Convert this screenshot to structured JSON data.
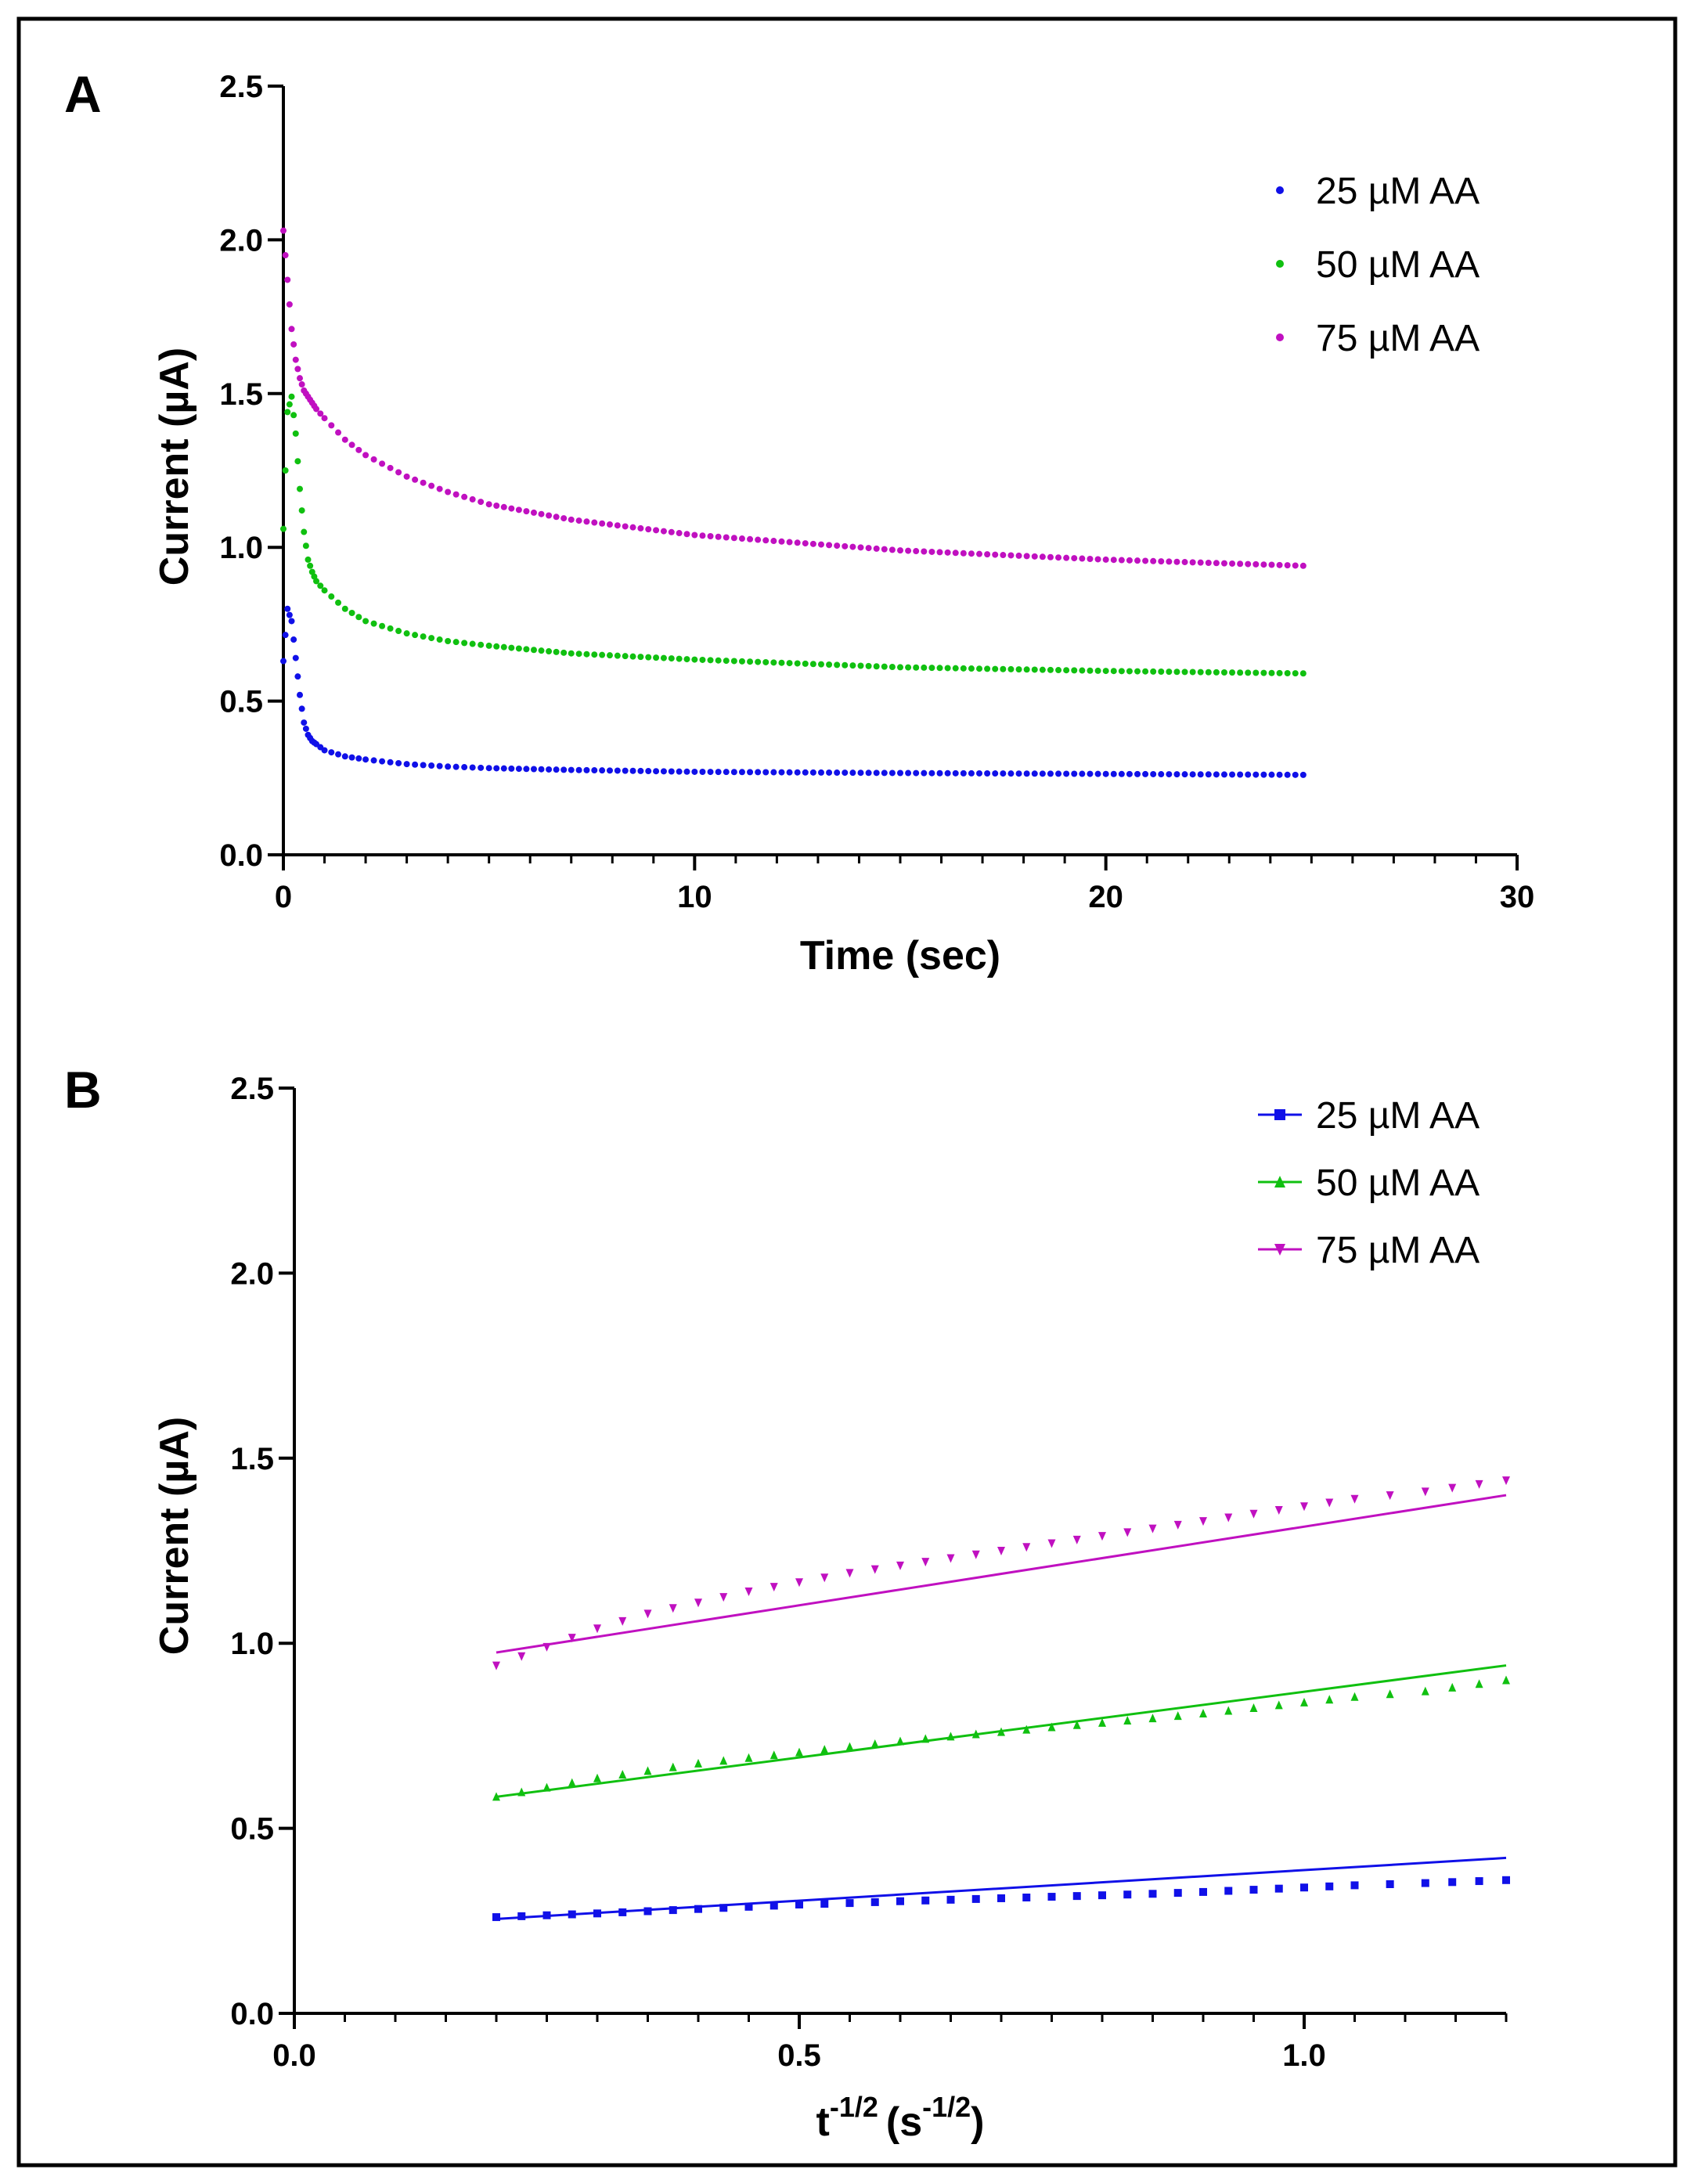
{
  "colors": {
    "series1": "#1010e8",
    "series2": "#10c010",
    "series3": "#c010c0",
    "frame": "#000000"
  },
  "chart_data": [
    {
      "panel_label": "A",
      "type": "scatter",
      "title": "",
      "xlabel": "Time (sec)",
      "ylabel": "Current (µA)",
      "xlim": [
        0,
        30
      ],
      "ylim": [
        0,
        2.5
      ],
      "xticks": [
        0,
        10,
        20,
        30
      ],
      "xtick_labels": [
        "0",
        "10",
        "20",
        "30"
      ],
      "yticks": [
        0,
        0.5,
        1.0,
        1.5,
        2.0,
        2.5
      ],
      "ytick_labels": [
        "0.0",
        "0.5",
        "1.0",
        "1.5",
        "2.0",
        "2.5"
      ],
      "legend_position": "top-right",
      "series": [
        {
          "name": "25 µM AA",
          "color": "#1010e8",
          "x": [
            0,
            0.1,
            0.2,
            0.3,
            0.4,
            0.5,
            0.6,
            0.7,
            0.8,
            1.0,
            1.5,
            2,
            3,
            4,
            5,
            7,
            10,
            15,
            20,
            24.8
          ],
          "y": [
            0.63,
            0.8,
            0.76,
            0.64,
            0.52,
            0.43,
            0.39,
            0.37,
            0.36,
            0.34,
            0.32,
            0.31,
            0.295,
            0.287,
            0.282,
            0.276,
            0.27,
            0.266,
            0.263,
            0.26
          ]
        },
        {
          "name": "50 µM AA",
          "color": "#10c010",
          "x": [
            0,
            0.1,
            0.2,
            0.3,
            0.4,
            0.5,
            0.6,
            0.7,
            0.8,
            1.0,
            1.5,
            2,
            3,
            4,
            5,
            7,
            10,
            15,
            20,
            24.8
          ],
          "y": [
            1.06,
            1.44,
            1.49,
            1.37,
            1.19,
            1.05,
            0.96,
            0.92,
            0.89,
            0.86,
            0.8,
            0.76,
            0.72,
            0.695,
            0.68,
            0.655,
            0.635,
            0.61,
            0.598,
            0.59
          ]
        },
        {
          "name": "75 µM AA",
          "color": "#c010c0",
          "x": [
            0,
            0.1,
            0.2,
            0.3,
            0.4,
            0.5,
            0.6,
            0.7,
            0.8,
            1.0,
            1.5,
            2,
            3,
            4,
            5,
            7,
            10,
            15,
            20,
            24.8
          ],
          "y": [
            2.03,
            1.87,
            1.71,
            1.61,
            1.55,
            1.51,
            1.49,
            1.47,
            1.45,
            1.42,
            1.35,
            1.3,
            1.23,
            1.18,
            1.14,
            1.09,
            1.04,
            0.99,
            0.96,
            0.94
          ]
        }
      ]
    },
    {
      "panel_label": "B",
      "type": "scatter",
      "title": "",
      "xlabel": "t",
      "xlabel_exp": "-1/2",
      "xlabel_unit": "(s",
      "xlabel_unit_exp": "-1/2",
      "xlabel_unit_close": ")",
      "ylabel": "Current (µA)",
      "xlim": [
        0,
        1.2
      ],
      "ylim": [
        0,
        2.5
      ],
      "xticks": [
        0,
        0.5,
        1.0
      ],
      "xtick_labels": [
        "0.0",
        "0.5",
        "1.0"
      ],
      "yticks": [
        0,
        0.5,
        1.0,
        1.5,
        2.0,
        2.5
      ],
      "ytick_labels": [
        "0.0",
        "0.5",
        "1.0",
        "1.5",
        "2.0",
        "2.5"
      ],
      "legend_position": "top-right",
      "series": [
        {
          "name": "25 µM AA",
          "color": "#1010e8",
          "marker": "square",
          "x": [
            0.2,
            0.25,
            0.3,
            0.35,
            0.4,
            0.45,
            0.5,
            0.55,
            0.6,
            0.65,
            0.7,
            0.75,
            0.8,
            0.85,
            0.9,
            0.95,
            1.0,
            1.05,
            1.12,
            1.2
          ],
          "y": [
            0.26,
            0.265,
            0.27,
            0.276,
            0.282,
            0.288,
            0.294,
            0.298,
            0.303,
            0.307,
            0.311,
            0.315,
            0.319,
            0.323,
            0.328,
            0.334,
            0.34,
            0.346,
            0.352,
            0.36
          ],
          "fit": {
            "x": [
              0.2,
              1.2
            ],
            "y": [
              0.255,
              0.42
            ]
          }
        },
        {
          "name": "50 µM AA",
          "color": "#10c010",
          "marker": "triangle-up",
          "x": [
            0.2,
            0.25,
            0.3,
            0.35,
            0.4,
            0.45,
            0.5,
            0.55,
            0.6,
            0.65,
            0.7,
            0.75,
            0.8,
            0.85,
            0.9,
            0.95,
            1.0,
            1.05,
            1.12,
            1.2
          ],
          "y": [
            0.585,
            0.61,
            0.635,
            0.655,
            0.675,
            0.69,
            0.705,
            0.72,
            0.735,
            0.748,
            0.76,
            0.773,
            0.785,
            0.797,
            0.81,
            0.825,
            0.84,
            0.855,
            0.87,
            0.9
          ],
          "fit": {
            "x": [
              0.2,
              1.2
            ],
            "y": [
              0.585,
              0.94
            ]
          }
        },
        {
          "name": "75 µM AA",
          "color": "#c010c0",
          "marker": "triangle-down",
          "x": [
            0.2,
            0.25,
            0.3,
            0.35,
            0.4,
            0.45,
            0.5,
            0.55,
            0.6,
            0.65,
            0.7,
            0.75,
            0.8,
            0.85,
            0.9,
            0.95,
            1.0,
            1.05,
            1.12,
            1.2
          ],
          "y": [
            0.94,
            0.99,
            1.04,
            1.08,
            1.11,
            1.14,
            1.165,
            1.19,
            1.21,
            1.23,
            1.25,
            1.27,
            1.29,
            1.31,
            1.33,
            1.35,
            1.37,
            1.39,
            1.41,
            1.44
          ],
          "fit": {
            "x": [
              0.2,
              1.2
            ],
            "y": [
              0.975,
              1.4
            ]
          }
        }
      ]
    }
  ]
}
